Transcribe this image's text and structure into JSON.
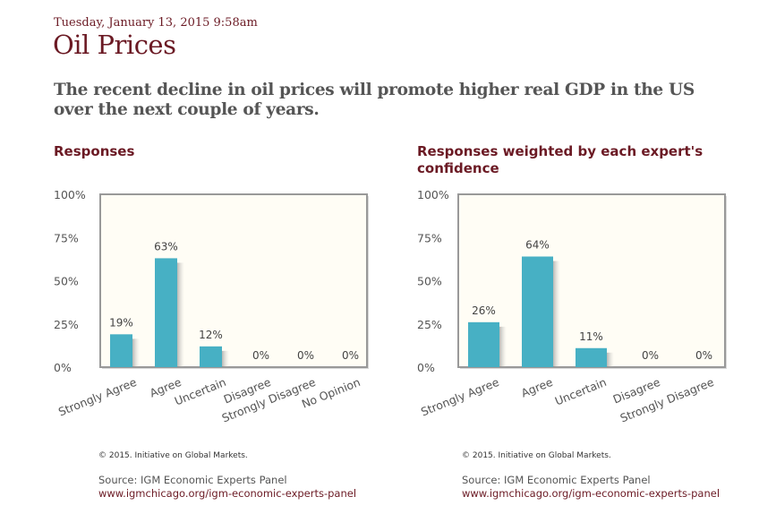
{
  "header": {
    "date": "Tuesday, January 13, 2015 9:58am",
    "title": "Oil Prices",
    "question": "The recent decline in oil prices will promote higher real GDP in the US over the next couple of years."
  },
  "colors": {
    "accent": "#6b1a24",
    "bar": "#47b0c4",
    "plot_bg": "#fffdf5",
    "frame": "#999999"
  },
  "panels": [
    {
      "title": "Responses",
      "credit": "© 2015. Initiative on Global Markets.",
      "source": "Source: IGM Economic Experts Panel",
      "link": "www.igmchicago.org/igm-economic-experts-panel"
    },
    {
      "title": "Responses weighted by each expert's confidence",
      "credit": "© 2015. Initiative on Global Markets.",
      "source": "Source: IGM Economic Experts Panel",
      "link": "www.igmchicago.org/igm-economic-experts-panel"
    }
  ],
  "chart_data": [
    {
      "type": "bar",
      "title": "Responses",
      "categories": [
        "Strongly Agree",
        "Agree",
        "Uncertain",
        "Disagree",
        "Strongly Disagree",
        "No Opinion"
      ],
      "values": [
        19,
        63,
        12,
        0,
        0,
        0
      ],
      "data_labels": [
        "19%",
        "63%",
        "12%",
        "0%",
        "0%",
        "0%"
      ],
      "yticks": [
        "0%",
        "25%",
        "50%",
        "75%",
        "100%"
      ],
      "ylim": [
        0,
        100
      ],
      "xlabel": "",
      "ylabel": "",
      "grid": false
    },
    {
      "type": "bar",
      "title": "Responses weighted by each expert's confidence",
      "categories": [
        "Strongly Agree",
        "Agree",
        "Uncertain",
        "Disagree",
        "Strongly Disagree"
      ],
      "values": [
        26,
        64,
        11,
        0,
        0
      ],
      "data_labels": [
        "26%",
        "64%",
        "11%",
        "0%",
        "0%"
      ],
      "yticks": [
        "0%",
        "25%",
        "50%",
        "75%",
        "100%"
      ],
      "ylim": [
        0,
        100
      ],
      "xlabel": "",
      "ylabel": "",
      "grid": false
    }
  ]
}
